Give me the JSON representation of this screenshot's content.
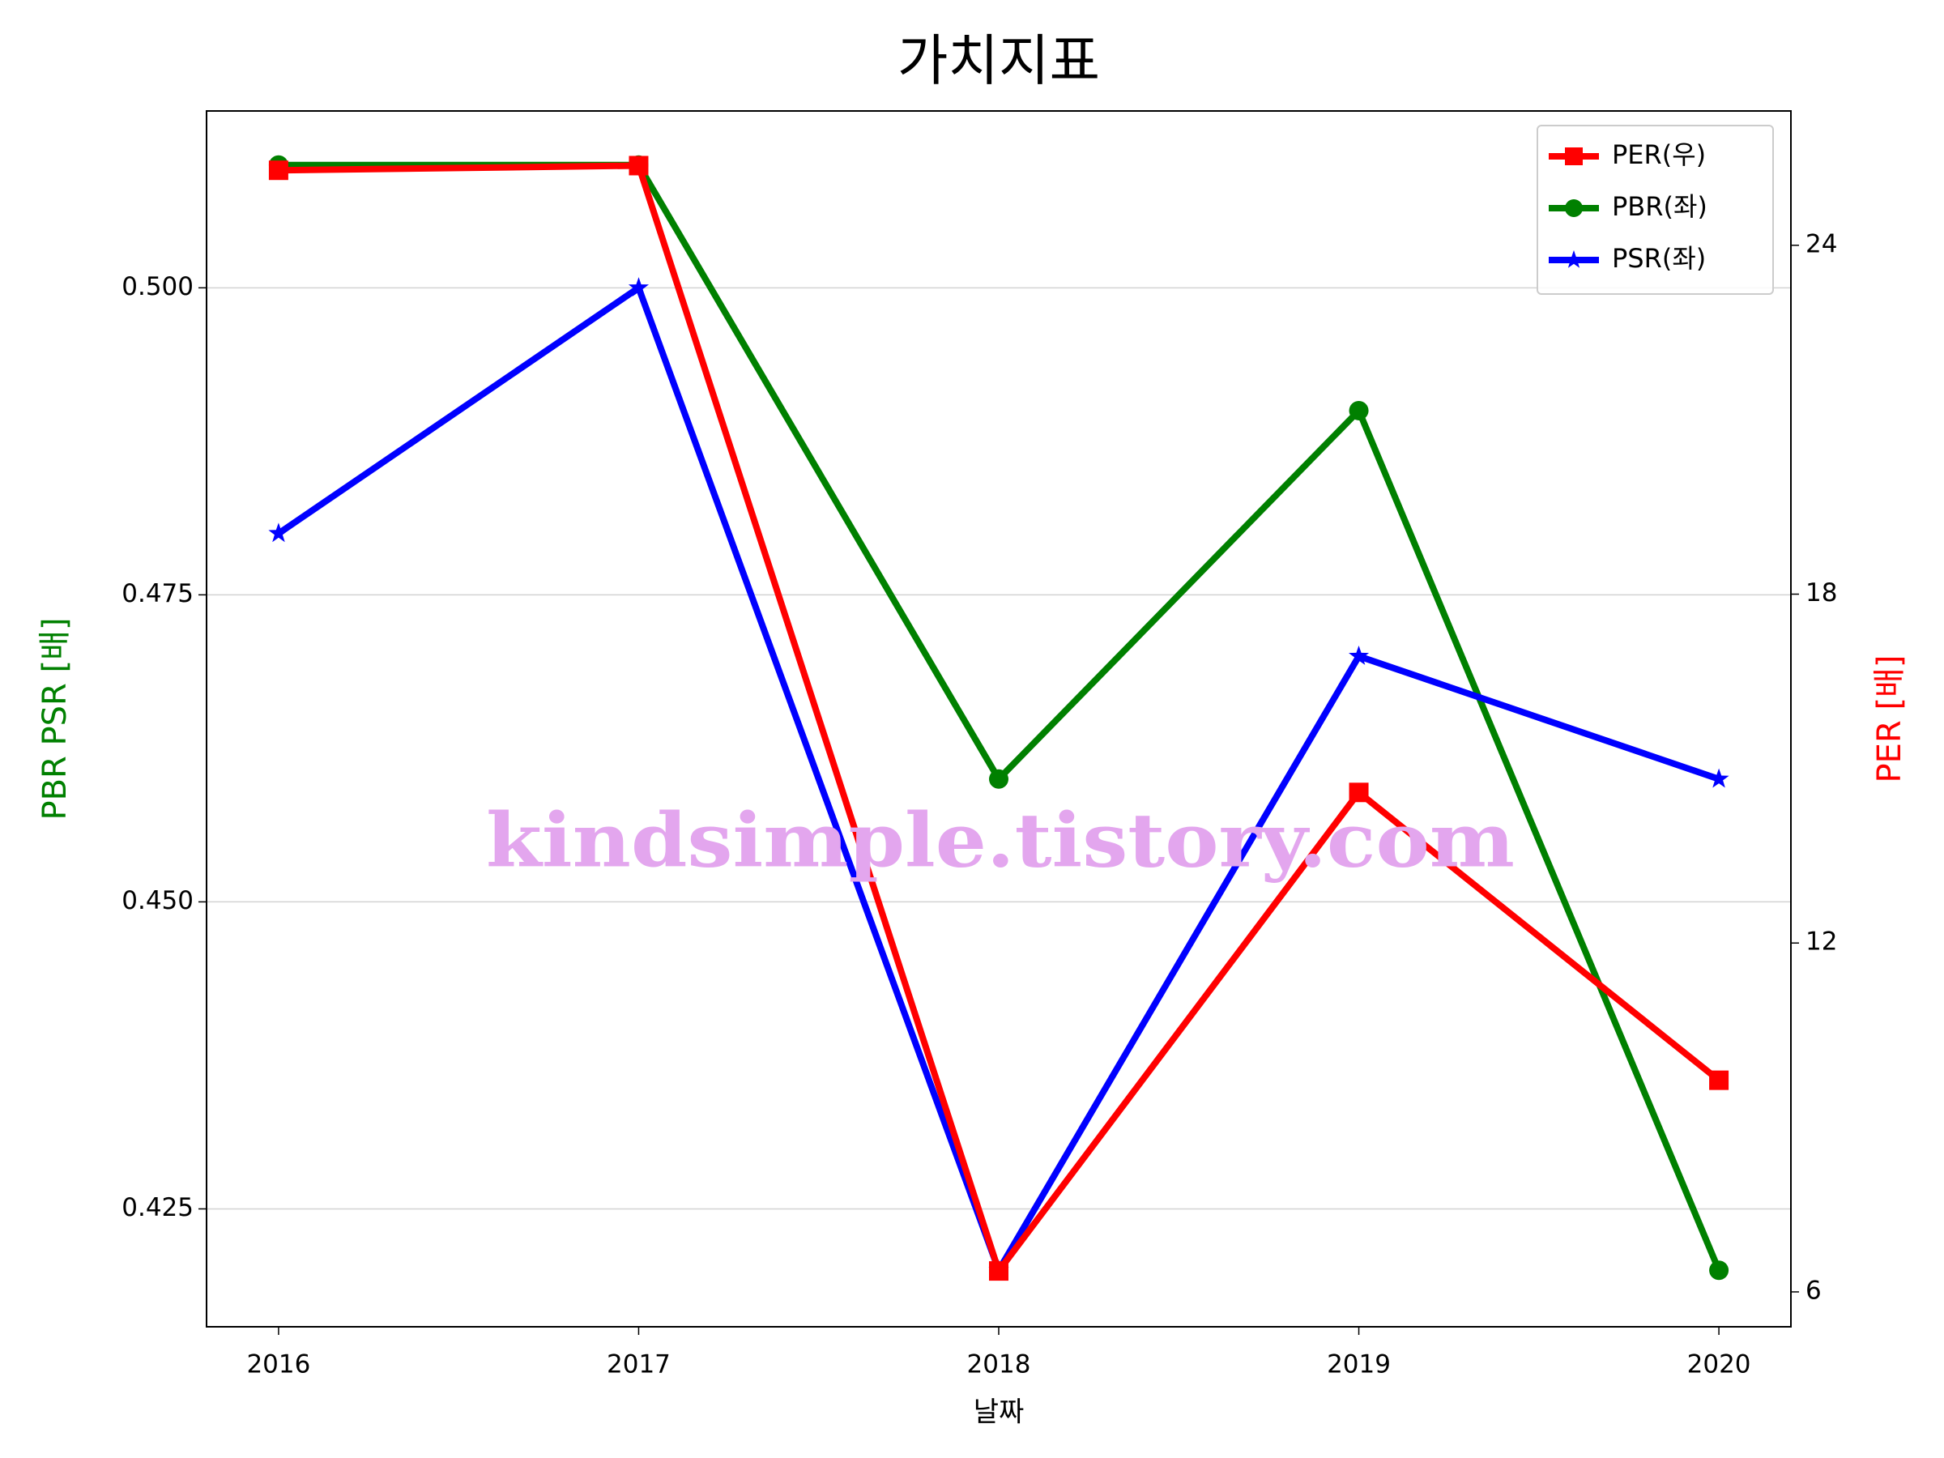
{
  "chart_data": {
    "type": "line",
    "title": "가치지표",
    "xlabel": "날짜",
    "ylabel": "PBR PSR [배]",
    "ylabel_color": "#008000",
    "y2label": "PER [배]",
    "y2label_color": "#ff0000",
    "watermark": "kindsimple.tistory.com",
    "watermark_color": "#e3a6ee",
    "x": [
      2016,
      2017,
      2018,
      2019,
      2020
    ],
    "xlim": [
      2015.8,
      2020.2
    ],
    "xticks": [
      2016,
      2017,
      2018,
      2019,
      2020
    ],
    "ylim": [
      0.4154,
      0.5144
    ],
    "yticks": [
      {
        "value": 0.425,
        "label": "0.425"
      },
      {
        "value": 0.45,
        "label": "0.450"
      },
      {
        "value": 0.475,
        "label": "0.475"
      },
      {
        "value": 0.5,
        "label": "0.500"
      }
    ],
    "y2lim": [
      5.4,
      26.31
    ],
    "y2ticks": [
      6,
      12,
      18,
      24
    ],
    "grid": true,
    "legend": "upper right",
    "series": [
      {
        "name": "PER(우)",
        "color": "#ff0000",
        "marker": "square",
        "axis": "y2",
        "values": [
          25.29,
          25.37,
          6.36,
          14.59,
          9.64
        ]
      },
      {
        "name": "PBR(좌)",
        "color": "#008000",
        "marker": "circle",
        "values": [
          0.51,
          0.51,
          0.46,
          0.49,
          0.42
        ]
      },
      {
        "name": "PSR(좌)",
        "color": "#0000ff",
        "marker": "star",
        "values": [
          0.48,
          0.5,
          0.42,
          0.47,
          0.46
        ]
      }
    ]
  }
}
